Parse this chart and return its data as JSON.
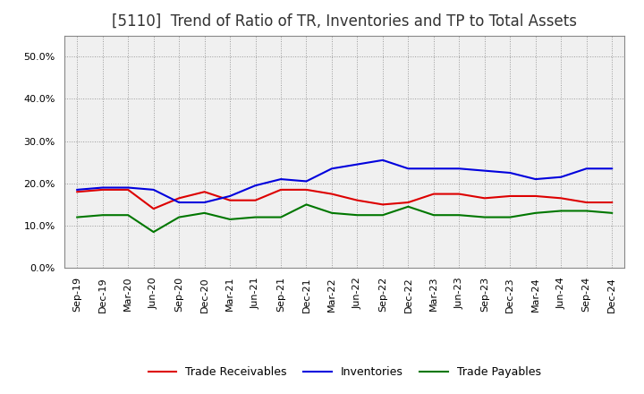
{
  "title": "[5110]  Trend of Ratio of TR, Inventories and TP to Total Assets",
  "x_labels": [
    "Sep-19",
    "Dec-19",
    "Mar-20",
    "Jun-20",
    "Sep-20",
    "Dec-20",
    "Mar-21",
    "Jun-21",
    "Sep-21",
    "Dec-21",
    "Mar-22",
    "Jun-22",
    "Sep-22",
    "Dec-22",
    "Mar-23",
    "Jun-23",
    "Sep-23",
    "Dec-23",
    "Mar-24",
    "Jun-24",
    "Sep-24",
    "Dec-24"
  ],
  "trade_receivables": [
    0.18,
    0.185,
    0.185,
    0.14,
    0.165,
    0.18,
    0.16,
    0.16,
    0.185,
    0.185,
    0.175,
    0.16,
    0.15,
    0.155,
    0.175,
    0.175,
    0.165,
    0.17,
    0.17,
    0.165,
    0.155,
    0.155
  ],
  "inventories": [
    0.185,
    0.19,
    0.19,
    0.185,
    0.155,
    0.155,
    0.17,
    0.195,
    0.21,
    0.205,
    0.235,
    0.245,
    0.255,
    0.235,
    0.235,
    0.235,
    0.23,
    0.225,
    0.21,
    0.215,
    0.235,
    0.235
  ],
  "trade_payables": [
    0.12,
    0.125,
    0.125,
    0.085,
    0.12,
    0.13,
    0.115,
    0.12,
    0.12,
    0.15,
    0.13,
    0.125,
    0.125,
    0.145,
    0.125,
    0.125,
    0.12,
    0.12,
    0.13,
    0.135,
    0.135,
    0.13
  ],
  "tr_color": "#dd0000",
  "inv_color": "#0000dd",
  "tp_color": "#007700",
  "line_width": 1.5,
  "background_color": "#ffffff",
  "plot_bg_color": "#f0f0f0",
  "grid_color": "#999999",
  "border_color": "#888888",
  "ylim": [
    0.0,
    0.55
  ],
  "yticks": [
    0.0,
    0.1,
    0.2,
    0.3,
    0.4,
    0.5
  ],
  "legend_tr": "Trade Receivables",
  "legend_inv": "Inventories",
  "legend_tp": "Trade Payables",
  "title_fontsize": 12,
  "tick_fontsize": 8,
  "legend_fontsize": 9,
  "title_color": "#333333"
}
